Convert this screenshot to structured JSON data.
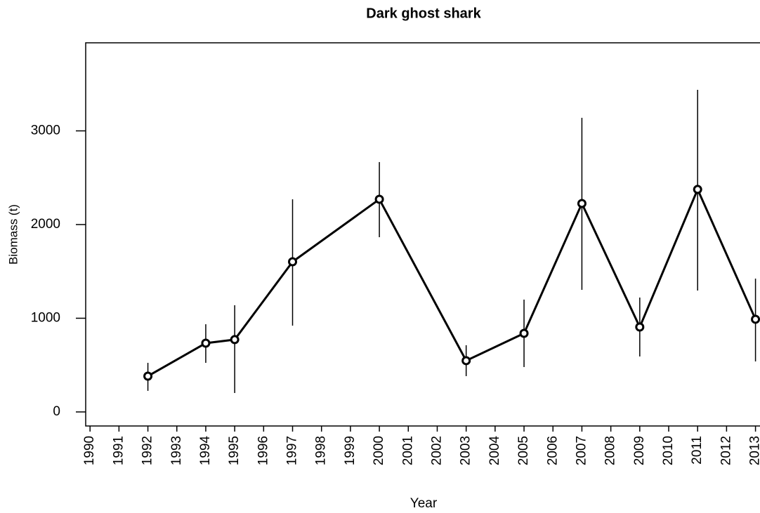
{
  "chart_data": {
    "type": "line",
    "title": "Dark ghost shark",
    "x_label": "Year",
    "y_label": "Biomass (t)",
    "x": [
      1992,
      1994,
      1995,
      1997,
      2000,
      2003,
      2005,
      2007,
      2009,
      2011,
      2013
    ],
    "series": [
      {
        "name": "Biomass",
        "color": "#000000",
        "values": [
          382,
          734,
          772,
          1603,
          2270,
          547,
          839,
          2225,
          906,
          2375,
          989
        ],
        "lower": [
          225,
          524,
          202,
          921,
          1865,
          382,
          479,
          1303,
          592,
          1296,
          539
        ],
        "upper": [
          524,
          936,
          1139,
          2270,
          2667,
          712,
          1199,
          3139,
          1221,
          3438,
          1423
        ]
      }
    ],
    "xlim": [
      1989.85,
      2013.35
    ],
    "ylim": [
      -150,
      3940
    ],
    "xticks": [
      1990,
      1991,
      1992,
      1993,
      1994,
      1995,
      1996,
      1997,
      1998,
      1999,
      2000,
      2001,
      2002,
      2003,
      2004,
      2005,
      2006,
      2007,
      2008,
      2009,
      2010,
      2011,
      2012,
      2013
    ],
    "yticks": [
      0,
      1000,
      2000,
      3000
    ]
  }
}
